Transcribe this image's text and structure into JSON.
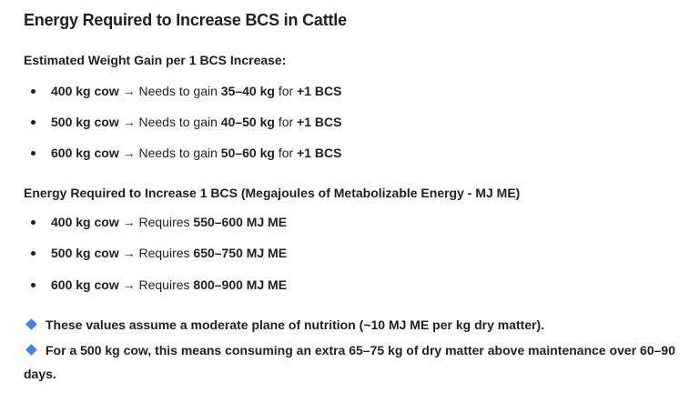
{
  "title": "Energy Required to Increase BCS in Cattle",
  "section1": {
    "heading": "Estimated Weight Gain per 1 BCS Increase:",
    "items": [
      {
        "cow": "400 kg cow",
        "arrow": " → ",
        "text": "Needs to gain ",
        "value": "35–40 kg",
        "mid": " for ",
        "bcs": "+1 BCS"
      },
      {
        "cow": "500 kg cow",
        "arrow": " → ",
        "text": "Needs to gain ",
        "value": "40–50 kg",
        "mid": " for ",
        "bcs": "+1 BCS"
      },
      {
        "cow": "600 kg cow",
        "arrow": " → ",
        "text": "Needs to gain ",
        "value": "50–60 kg",
        "mid": " for ",
        "bcs": "+1 BCS"
      }
    ]
  },
  "section2": {
    "heading": "Energy Required to Increase 1 BCS (Megajoules of Metabolizable Energy - MJ ME)",
    "items": [
      {
        "cow": "400 kg cow",
        "arrow": " → ",
        "text": "Requires ",
        "value": "550–600 MJ ME"
      },
      {
        "cow": "500 kg cow",
        "arrow": " → ",
        "text": "Requires ",
        "value": "650–750 MJ ME"
      },
      {
        "cow": "600 kg cow",
        "arrow": " → ",
        "text": "Requires ",
        "value": "800–900 MJ ME"
      }
    ]
  },
  "notes": {
    "icon": "blue-diamond-icon",
    "icon_color": "#3b82f6",
    "note1": "These values assume a moderate plane of nutrition (~10 MJ ME per kg dry matter).",
    "note2": "For a 500 kg cow, this means consuming an extra 65–75 kg of dry matter above maintenance over 60–90 days."
  }
}
